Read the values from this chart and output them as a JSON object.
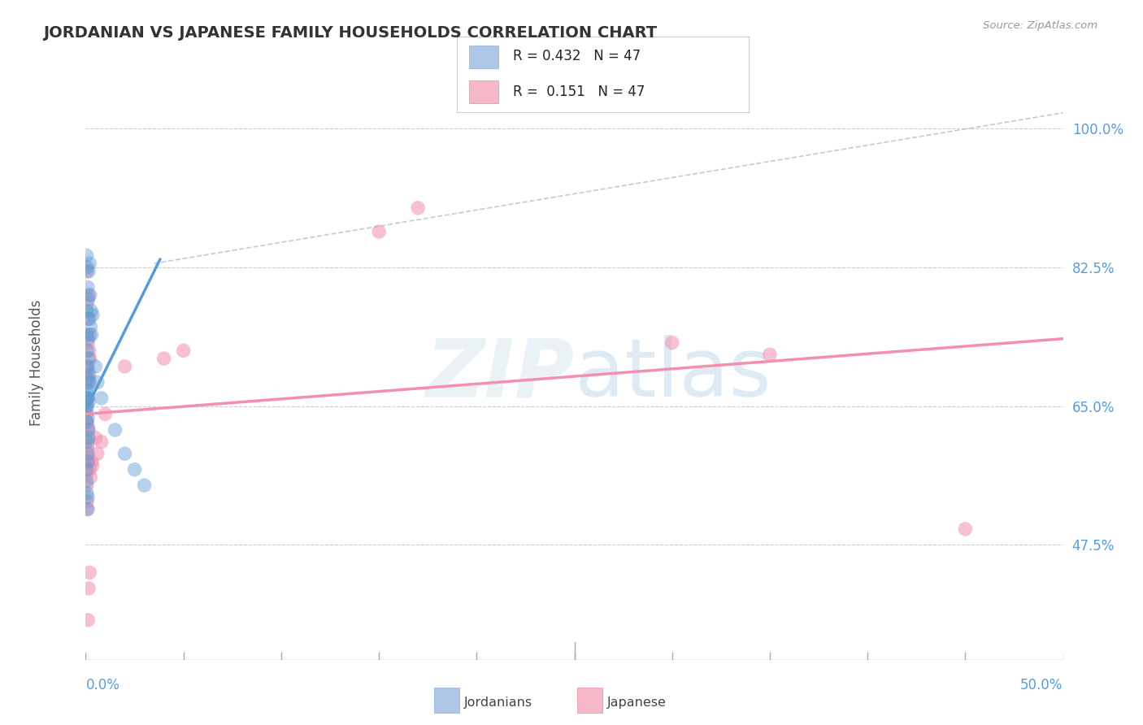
{
  "title": "JORDANIAN VS JAPANESE FAMILY HOUSEHOLDS CORRELATION CHART",
  "source": "Source: ZipAtlas.com",
  "ylabel": "Family Households",
  "right_yticks": [
    47.5,
    65.0,
    82.5,
    100.0
  ],
  "right_ytick_labels": [
    "47.5%",
    "65.0%",
    "82.5%",
    "100.0%"
  ],
  "xlim": [
    0.0,
    50.0
  ],
  "ylim": [
    33.0,
    108.0
  ],
  "watermark": "ZIPatlas",
  "blue_color": "#5b9bd5",
  "pink_color": "#f48faf",
  "blue_scatter": [
    [
      0.05,
      84.0
    ],
    [
      0.08,
      82.5
    ],
    [
      0.1,
      80.0
    ],
    [
      0.12,
      78.5
    ],
    [
      0.15,
      82.0
    ],
    [
      0.18,
      76.0
    ],
    [
      0.2,
      83.0
    ],
    [
      0.22,
      79.0
    ],
    [
      0.25,
      75.0
    ],
    [
      0.28,
      77.0
    ],
    [
      0.3,
      74.0
    ],
    [
      0.35,
      76.5
    ],
    [
      0.05,
      77.0
    ],
    [
      0.07,
      74.0
    ],
    [
      0.08,
      72.0
    ],
    [
      0.1,
      70.0
    ],
    [
      0.12,
      73.5
    ],
    [
      0.15,
      71.0
    ],
    [
      0.17,
      69.0
    ],
    [
      0.2,
      68.0
    ],
    [
      0.08,
      68.5
    ],
    [
      0.1,
      67.0
    ],
    [
      0.12,
      66.0
    ],
    [
      0.15,
      65.5
    ],
    [
      0.08,
      65.0
    ],
    [
      0.05,
      66.0
    ],
    [
      0.03,
      67.0
    ],
    [
      0.04,
      64.5
    ],
    [
      0.06,
      63.0
    ],
    [
      0.1,
      63.5
    ],
    [
      0.12,
      62.0
    ],
    [
      0.15,
      61.0
    ],
    [
      0.08,
      60.5
    ],
    [
      0.1,
      59.0
    ],
    [
      0.12,
      58.0
    ],
    [
      0.05,
      57.0
    ],
    [
      0.04,
      55.5
    ],
    [
      0.06,
      54.0
    ],
    [
      0.08,
      52.0
    ],
    [
      0.1,
      53.5
    ],
    [
      0.5,
      70.0
    ],
    [
      0.6,
      68.0
    ],
    [
      0.8,
      66.0
    ],
    [
      1.5,
      62.0
    ],
    [
      2.0,
      59.0
    ],
    [
      2.5,
      57.0
    ],
    [
      3.0,
      55.0
    ]
  ],
  "pink_scatter": [
    [
      0.05,
      82.0
    ],
    [
      0.08,
      78.0
    ],
    [
      0.1,
      76.0
    ],
    [
      0.12,
      73.0
    ],
    [
      0.15,
      79.0
    ],
    [
      0.18,
      72.0
    ],
    [
      0.2,
      74.0
    ],
    [
      0.22,
      71.0
    ],
    [
      0.08,
      70.0
    ],
    [
      0.1,
      69.5
    ],
    [
      0.12,
      68.0
    ],
    [
      0.15,
      68.5
    ],
    [
      0.08,
      66.0
    ],
    [
      0.05,
      65.5
    ],
    [
      0.03,
      65.0
    ],
    [
      0.04,
      64.0
    ],
    [
      0.06,
      63.0
    ],
    [
      0.1,
      62.5
    ],
    [
      0.12,
      61.0
    ],
    [
      0.15,
      62.0
    ],
    [
      0.08,
      60.0
    ],
    [
      0.1,
      59.5
    ],
    [
      0.12,
      58.5
    ],
    [
      0.05,
      58.0
    ],
    [
      0.04,
      56.5
    ],
    [
      0.06,
      55.0
    ],
    [
      0.08,
      53.0
    ],
    [
      0.1,
      52.0
    ],
    [
      0.2,
      57.0
    ],
    [
      0.25,
      56.0
    ],
    [
      0.3,
      58.0
    ],
    [
      0.35,
      57.5
    ],
    [
      0.5,
      61.0
    ],
    [
      0.6,
      59.0
    ],
    [
      0.8,
      60.5
    ],
    [
      1.0,
      64.0
    ],
    [
      2.0,
      70.0
    ],
    [
      4.0,
      71.0
    ],
    [
      5.0,
      72.0
    ],
    [
      15.0,
      87.0
    ],
    [
      17.0,
      90.0
    ],
    [
      30.0,
      73.0
    ],
    [
      35.0,
      71.5
    ],
    [
      45.0,
      49.5
    ],
    [
      0.15,
      42.0
    ],
    [
      0.2,
      44.0
    ],
    [
      0.12,
      38.0
    ]
  ],
  "blue_line": {
    "x0": 0.0,
    "x1": 3.8,
    "y0": 64.5,
    "y1": 83.5
  },
  "pink_line": {
    "x0": 0.0,
    "x1": 50.0,
    "y0": 64.0,
    "y1": 73.5
  },
  "dashed_line": {
    "x0": 3.5,
    "x1": 50.0,
    "y0": 83.0,
    "y1": 102.0
  },
  "background_color": "#ffffff",
  "grid_color": "#c8c8c8"
}
